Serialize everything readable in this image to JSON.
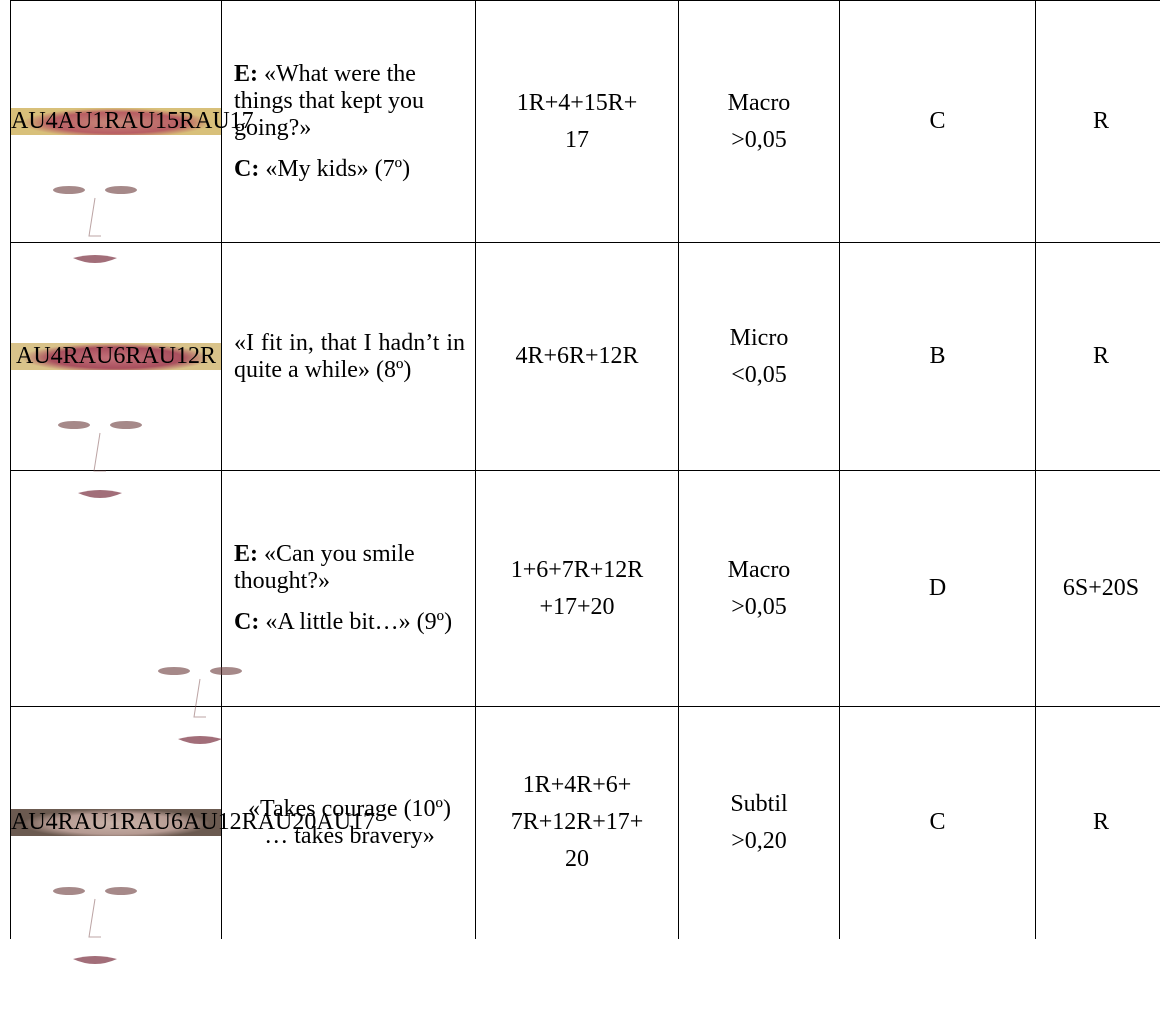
{
  "table": {
    "rows": [
      {
        "photo_labels": [
          "AU4",
          "AU1R",
          "AU15R",
          "AU17"
        ],
        "utterance": [
          {
            "speaker": "E:",
            "text": "«What were the things that kept you going?»"
          },
          {
            "speaker": "C:",
            "text": "«My kids» (7º)"
          }
        ],
        "action_units": [
          "1R+4+15R+",
          "17"
        ],
        "expression": [
          "Macro",
          ">0,05"
        ],
        "category": "C",
        "other": "R"
      },
      {
        "photo_labels": [
          "AU4R",
          "AU6R",
          "AU12R"
        ],
        "utterance": [
          {
            "text": "«I fit in, that I hadn’t in quite a while» (8º)"
          }
        ],
        "action_units": [
          "4R+6R+12R"
        ],
        "expression": [
          "Micro",
          "<0,05"
        ],
        "category": "B",
        "other": "R"
      },
      {
        "photo_labels": [],
        "utterance": [
          {
            "speaker": "E:",
            "text": "«Can you smile thought?»"
          },
          {
            "speaker": "C:",
            "text": "«A little bit…» (9º)"
          }
        ],
        "action_units": [
          "1+6+7R+12R",
          "+17+20"
        ],
        "expression": [
          "Macro",
          ">0,05"
        ],
        "category": "D",
        "other": "6S+20S"
      },
      {
        "photo_labels": [
          "AU4R",
          "AU1R",
          "AU6",
          "AU12R",
          "AU20",
          "AU17"
        ],
        "utterance": [
          {
            "text": "«Takes courage (10º) … takes bravery»"
          }
        ],
        "action_units": [
          "1R+4R+6+",
          "7R+12R+17+",
          "20"
        ],
        "expression": [
          "Subtil",
          ">0,20"
        ],
        "category": "C",
        "other": "R"
      }
    ]
  }
}
